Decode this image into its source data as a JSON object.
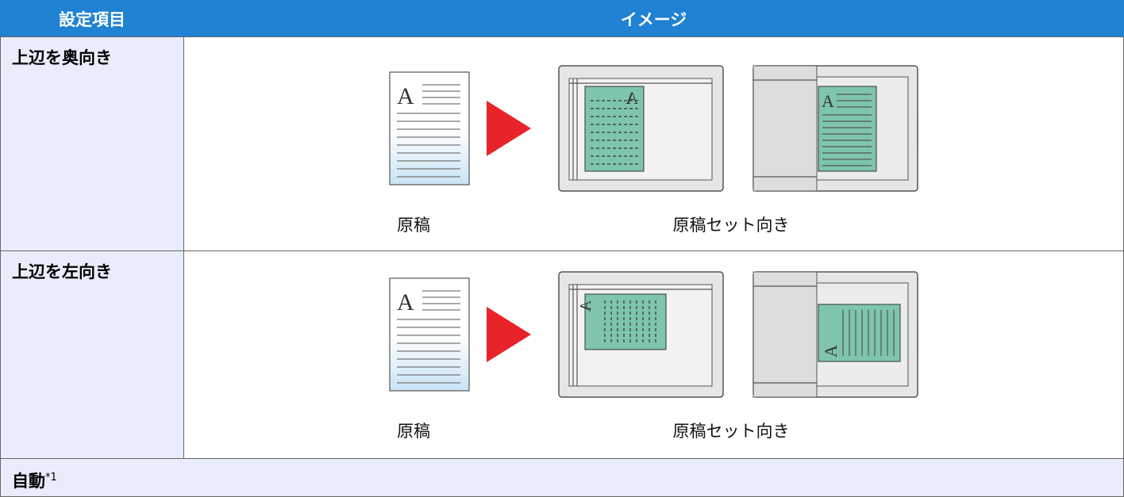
{
  "header": {
    "col1": "設定項目",
    "col2": "イメージ"
  },
  "rows": [
    {
      "label": "上辺を奥向き",
      "letter": "A",
      "caption_original": "原稿",
      "caption_set": "原稿セット向き"
    },
    {
      "label": "上辺を左向き",
      "letter": "A",
      "caption_original": "原稿",
      "caption_set": "原稿セット向き"
    },
    {
      "label": "自動",
      "footnote_mark": "*1"
    }
  ]
}
